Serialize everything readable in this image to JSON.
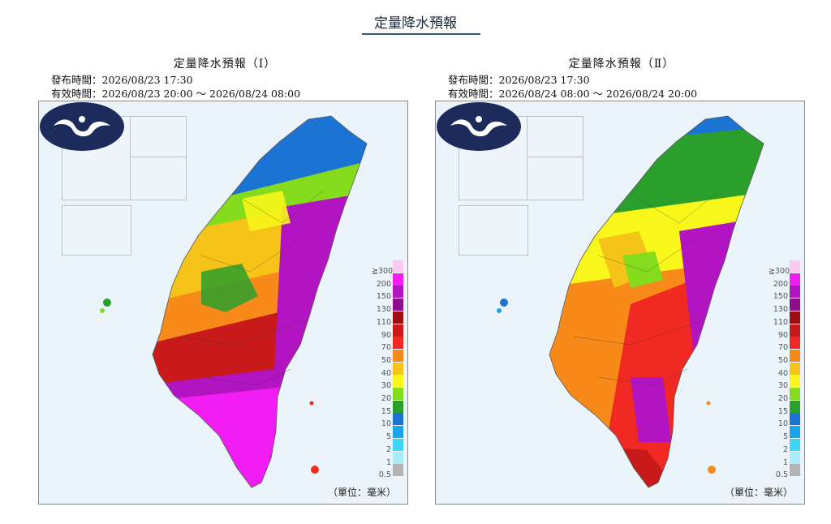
{
  "header": {
    "title": "定量降水預報"
  },
  "legend": {
    "unit": "（單位：毫米）",
    "levels": [
      {
        "label": "≧300",
        "color": "#fcc9f3"
      },
      {
        "label": "200",
        "color": "#f21df2"
      },
      {
        "label": "150",
        "color": "#b214c2"
      },
      {
        "label": "130",
        "color": "#8e0c8e"
      },
      {
        "label": "110",
        "color": "#9e0e10"
      },
      {
        "label": "90",
        "color": "#c81a1a"
      },
      {
        "label": "70",
        "color": "#f02a22"
      },
      {
        "label": "50",
        "color": "#f78a18"
      },
      {
        "label": "40",
        "color": "#f6c318"
      },
      {
        "label": "30",
        "color": "#f8f61a"
      },
      {
        "label": "20",
        "color": "#84dc1c"
      },
      {
        "label": "15",
        "color": "#2b9f2b"
      },
      {
        "label": "10",
        "color": "#1b73d4"
      },
      {
        "label": "5",
        "color": "#1aa6ee"
      },
      {
        "label": "2",
        "color": "#3fd5f7"
      },
      {
        "label": "1",
        "color": "#a9edf8"
      },
      {
        "label": "0.5",
        "color": "#b4b4b4"
      }
    ]
  },
  "maps": [
    {
      "title": "定量降水預報（Ⅰ）",
      "issued": "發布時間：2026/08/23 17:30",
      "valid": "有效時間：2026/08/23 20:00 ～ 2026/08/24 08:00",
      "bands": [
        "#1b73d4",
        "#84dc1c",
        "#f6c318",
        "#f78a18",
        "#c81a1a",
        "#f21df2"
      ],
      "zones": {
        "north": "blue-green",
        "central": "yellow-green",
        "east": "purple",
        "south": "magenta"
      }
    },
    {
      "title": "定量降水預報（Ⅱ）",
      "issued": "發布時間：2026/08/23 17:30",
      "valid": "有效時間：2026/08/24 08:00 ～ 2026/08/24 20:00",
      "bands": [
        "#1b73d4",
        "#2b9f2b",
        "#f8f61a",
        "#f78a18",
        "#f02a22",
        "#b214c2"
      ],
      "zones": {
        "north": "green",
        "central": "yellow",
        "east": "red-purple",
        "south": "red"
      }
    }
  ]
}
